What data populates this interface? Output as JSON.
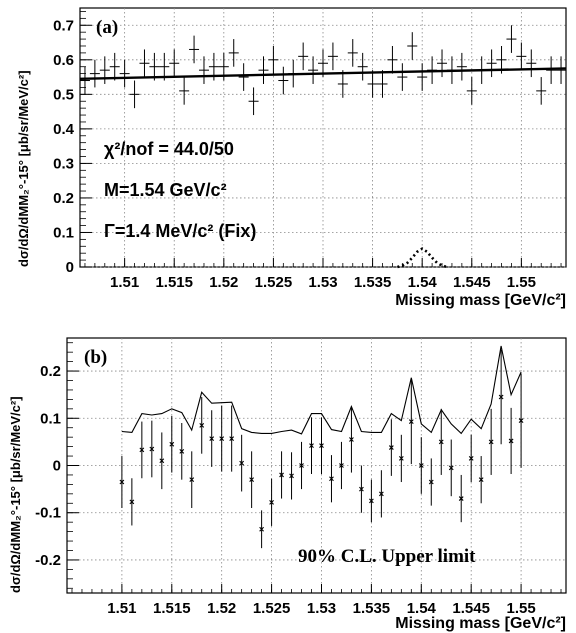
{
  "chart_data": [
    {
      "type": "scatter",
      "panel_label": "(a)",
      "xlabel": "Missing mass [GeV/c²]",
      "ylabel": "dσ/dΩ/dMM₂°-15° [μb/sr/MeV/c²]",
      "xlim": [
        1.5055,
        1.5545
      ],
      "ylim": [
        0,
        0.75
      ],
      "grid": true,
      "x_ticks": [
        "1.51",
        "1.515",
        "1.52",
        "1.525",
        "1.53",
        "1.535",
        "1.54",
        "1.545",
        "1.55"
      ],
      "x_tick_values": [
        1.51,
        1.515,
        1.52,
        1.525,
        1.53,
        1.535,
        1.54,
        1.545,
        1.55
      ],
      "y_ticks": [
        "0",
        "0.1",
        "0.2",
        "0.3",
        "0.4",
        "0.5",
        "0.6",
        "0.7"
      ],
      "y_tick_values": [
        0,
        0.1,
        0.2,
        0.3,
        0.4,
        0.5,
        0.6,
        0.7
      ],
      "annotations": [
        {
          "id": "chi2",
          "text": "χ²/nof = 44.0/50"
        },
        {
          "id": "mass",
          "text": "M=1.54 GeV/c²"
        },
        {
          "id": "width",
          "text": "Γ=1.4 MeV/c² (Fix)"
        }
      ],
      "series": [
        {
          "style": "points-with-errors",
          "x": [
            1.506,
            1.507,
            1.508,
            1.509,
            1.51,
            1.511,
            1.512,
            1.513,
            1.514,
            1.515,
            1.516,
            1.517,
            1.518,
            1.519,
            1.52,
            1.521,
            1.522,
            1.523,
            1.524,
            1.525,
            1.526,
            1.527,
            1.528,
            1.529,
            1.53,
            1.531,
            1.532,
            1.533,
            1.534,
            1.535,
            1.536,
            1.537,
            1.538,
            1.539,
            1.54,
            1.541,
            1.542,
            1.543,
            1.544,
            1.545,
            1.546,
            1.547,
            1.548,
            1.549,
            1.55,
            1.551,
            1.552,
            1.553,
            1.554
          ],
          "y": [
            0.54,
            0.56,
            0.57,
            0.58,
            0.56,
            0.5,
            0.59,
            0.58,
            0.58,
            0.59,
            0.51,
            0.63,
            0.57,
            0.58,
            0.58,
            0.62,
            0.55,
            0.48,
            0.57,
            0.6,
            0.54,
            0.56,
            0.61,
            0.57,
            0.59,
            0.61,
            0.53,
            0.62,
            0.58,
            0.53,
            0.53,
            0.6,
            0.55,
            0.64,
            0.55,
            0.57,
            0.59,
            0.57,
            0.58,
            0.51,
            0.57,
            0.59,
            0.6,
            0.66,
            0.61,
            0.59,
            0.51,
            0.57,
            0.57
          ],
          "err": [
            0.04,
            0.04,
            0.04,
            0.04,
            0.04,
            0.04,
            0.04,
            0.04,
            0.04,
            0.04,
            0.04,
            0.04,
            0.04,
            0.04,
            0.04,
            0.04,
            0.04,
            0.04,
            0.04,
            0.04,
            0.04,
            0.04,
            0.04,
            0.04,
            0.04,
            0.04,
            0.04,
            0.04,
            0.04,
            0.04,
            0.04,
            0.04,
            0.04,
            0.04,
            0.04,
            0.04,
            0.04,
            0.04,
            0.04,
            0.04,
            0.04,
            0.04,
            0.04,
            0.04,
            0.04,
            0.04,
            0.04,
            0.04,
            0.04
          ]
        },
        {
          "style": "solid-line-fit",
          "x": [
            1.5055,
            1.5545
          ],
          "y": [
            0.545,
            0.575
          ]
        },
        {
          "style": "dotted-peak",
          "x": [
            1.5375,
            1.538,
            1.5385,
            1.539,
            1.5395,
            1.54,
            1.5405,
            1.541,
            1.5415,
            1.542,
            1.5425
          ],
          "y": [
            0,
            0.004,
            0.012,
            0.027,
            0.044,
            0.053,
            0.044,
            0.027,
            0.012,
            0.004,
            0
          ]
        }
      ]
    },
    {
      "type": "scatter",
      "panel_label": "(b)",
      "xlabel": "Missing mass [GeV/c²]",
      "ylabel": "dσ/dΩ/dMM₂°-15° [μb/sr/MeV/c²]",
      "xlim": [
        1.5045,
        1.5545
      ],
      "ylim": [
        -0.27,
        0.27
      ],
      "grid": true,
      "x_ticks": [
        "1.51",
        "1.515",
        "1.52",
        "1.525",
        "1.53",
        "1.535",
        "1.54",
        "1.545",
        "1.55"
      ],
      "x_tick_values": [
        1.51,
        1.515,
        1.52,
        1.525,
        1.53,
        1.535,
        1.54,
        1.545,
        1.55
      ],
      "y_ticks": [
        "-0.2",
        "-0.1",
        "0",
        "0.1",
        "0.2"
      ],
      "y_tick_values": [
        -0.2,
        -0.1,
        0,
        0.1,
        0.2
      ],
      "annotations": [
        {
          "id": "upper-limit",
          "text": "90% C.L. Upper limit"
        }
      ],
      "series": [
        {
          "style": "points-with-errors",
          "x": [
            1.51,
            1.511,
            1.512,
            1.513,
            1.514,
            1.515,
            1.516,
            1.517,
            1.518,
            1.519,
            1.52,
            1.521,
            1.522,
            1.523,
            1.524,
            1.525,
            1.526,
            1.527,
            1.528,
            1.529,
            1.53,
            1.531,
            1.532,
            1.533,
            1.534,
            1.535,
            1.536,
            1.537,
            1.538,
            1.539,
            1.54,
            1.541,
            1.542,
            1.543,
            1.544,
            1.545,
            1.546,
            1.547,
            1.548,
            1.549,
            1.55
          ],
          "y": [
            -0.035,
            -0.077,
            0.033,
            0.035,
            0.01,
            0.045,
            0.03,
            -0.03,
            0.085,
            0.057,
            0.057,
            0.057,
            0.005,
            -0.03,
            -0.135,
            -0.078,
            -0.02,
            -0.022,
            0.0,
            0.042,
            0.042,
            -0.028,
            0.0,
            0.055,
            -0.05,
            -0.075,
            -0.06,
            0.038,
            0.015,
            0.093,
            0.0,
            -0.035,
            0.05,
            -0.005,
            -0.07,
            0.015,
            -0.03,
            0.05,
            0.145,
            0.052,
            0.095
          ],
          "err": [
            0.055,
            0.05,
            0.06,
            0.06,
            0.06,
            0.06,
            0.06,
            0.06,
            0.06,
            0.06,
            0.07,
            0.07,
            0.06,
            0.06,
            0.04,
            0.05,
            0.05,
            0.05,
            0.05,
            0.06,
            0.06,
            0.05,
            0.05,
            0.07,
            0.05,
            0.045,
            0.05,
            0.06,
            0.05,
            0.09,
            0.06,
            0.05,
            0.07,
            0.06,
            0.05,
            0.05,
            0.05,
            0.07,
            0.1,
            0.07,
            0.1
          ]
        },
        {
          "style": "solid-line-upper-limit",
          "x": [
            1.51,
            1.511,
            1.512,
            1.513,
            1.514,
            1.515,
            1.516,
            1.517,
            1.518,
            1.519,
            1.52,
            1.521,
            1.522,
            1.523,
            1.524,
            1.525,
            1.526,
            1.527,
            1.528,
            1.529,
            1.53,
            1.531,
            1.532,
            1.533,
            1.534,
            1.535,
            1.536,
            1.537,
            1.538,
            1.539,
            1.54,
            1.541,
            1.542,
            1.543,
            1.544,
            1.545,
            1.546,
            1.547,
            1.548,
            1.549,
            1.55
          ],
          "y": [
            0.072,
            0.07,
            0.11,
            0.107,
            0.11,
            0.12,
            0.112,
            0.075,
            0.155,
            0.132,
            0.133,
            0.134,
            0.078,
            0.07,
            0.068,
            0.068,
            0.072,
            0.075,
            0.067,
            0.11,
            0.11,
            0.076,
            0.072,
            0.125,
            0.072,
            0.07,
            0.07,
            0.11,
            0.095,
            0.186,
            0.088,
            0.07,
            0.118,
            0.088,
            0.068,
            0.098,
            0.078,
            0.13,
            0.253,
            0.15,
            0.198
          ]
        }
      ]
    }
  ]
}
